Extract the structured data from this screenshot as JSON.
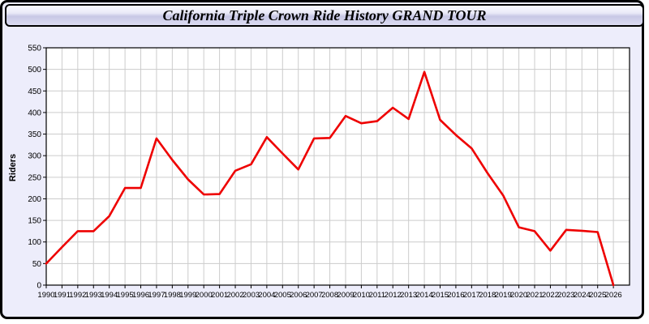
{
  "page": {
    "background_color": "#ededfb",
    "border_color": "#000000"
  },
  "header": {
    "title": "California Triple Crown Ride History GRAND TOUR"
  },
  "chart_data": {
    "type": "line",
    "title": "California Triple Crown Ride History GRAND TOUR",
    "xlabel": "",
    "ylabel": "Riders",
    "x": [
      1990,
      1991,
      1992,
      1993,
      1994,
      1995,
      1996,
      1997,
      1998,
      1999,
      2000,
      2001,
      2002,
      2003,
      2004,
      2005,
      2006,
      2007,
      2008,
      2009,
      2010,
      2011,
      2012,
      2013,
      2014,
      2015,
      2016,
      2017,
      2018,
      2019,
      2020,
      2021,
      2022,
      2023,
      2024,
      2025,
      2026
    ],
    "series": [
      {
        "name": "Riders",
        "color": "#ee0000",
        "values": [
          50,
          88,
          125,
          125,
          160,
          225,
          225,
          340,
          290,
          245,
          210,
          211,
          265,
          280,
          343,
          305,
          268,
          340,
          341,
          392,
          375,
          380,
          411,
          385,
          494,
          383,
          348,
          317,
          260,
          208,
          134,
          125,
          80,
          128,
          126,
          123,
          0
        ]
      }
    ],
    "ylim": [
      0,
      550
    ],
    "ytick_step": 50,
    "grid": true,
    "grid_color": "#cccccc",
    "plot_background": "#ffffff",
    "axis_color": "#000000",
    "legend_position": "none"
  }
}
